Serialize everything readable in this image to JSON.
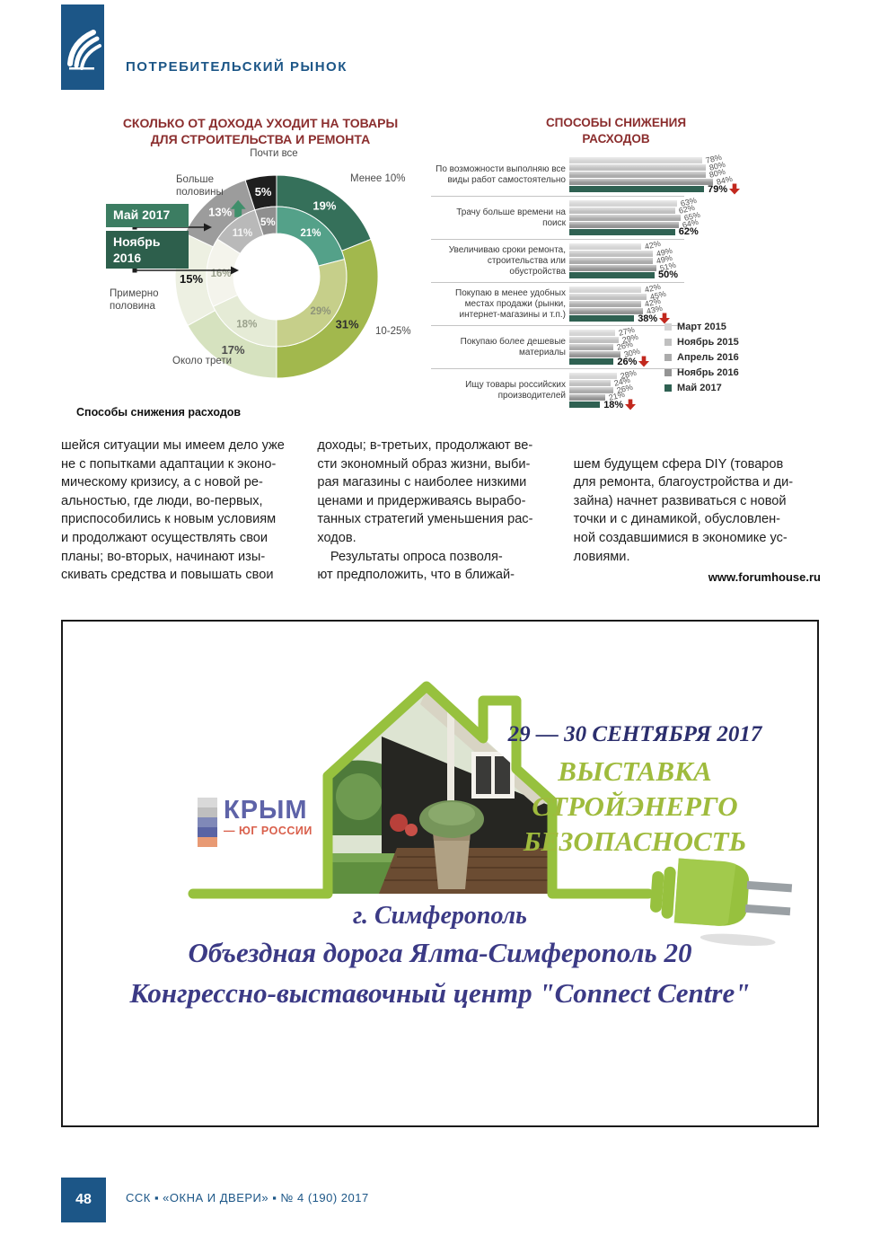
{
  "header": {
    "section_title": "ПОТРЕБИТЕЛЬСКИЙ РЫНОК",
    "brand_color": "#1c5687"
  },
  "chart_data": [
    {
      "type": "donut",
      "title": "СКОЛЬКО ОТ ДОХОДА УХОДИТ НА ТОВАРЫ\nДЛЯ СТРОИТЕЛЬСТВА И РЕМОНТА",
      "title_color": "#8b2e2e",
      "categories": [
        "Менее 10%",
        "10-25%",
        "Около трети",
        "Примерно половина",
        "Больше половины",
        "Почти все"
      ],
      "rings": [
        {
          "name": "Май 2017",
          "position": "outer",
          "values": [
            19,
            31,
            17,
            15,
            13,
            5
          ],
          "badge_color": "#3c7d62"
        },
        {
          "name": "Ноябрь 2016",
          "position": "inner",
          "values": [
            21,
            29,
            18,
            16,
            11,
            5
          ],
          "badge_color": "#2d5f4c"
        }
      ],
      "ring_colors": {
        "outer": [
          "#35705a",
          "#a2b84d",
          "#d6e2bf",
          "#edf0e2",
          "#9c9c9c",
          "#1f1f1f"
        ],
        "inner": [
          "#54a189",
          "#c6cf8a",
          "#e5ebd6",
          "#f4f4ec",
          "#b9b9b9",
          "#8f8f8f"
        ]
      },
      "label_colors": {
        "outer": [
          "#ffffff",
          "#2f2f2f",
          "#4c4c4c",
          "#101010",
          "#ffffff",
          "#ffffff"
        ],
        "inner": [
          "#ffffff",
          "#8f9579",
          "#9aa18c",
          "#9aa08e",
          "#f4f4f4",
          "#ffffff"
        ]
      },
      "up_arrow_category_index": 4,
      "legend_note": "outer ring = Май 2017, inner ring = Ноябрь 2016"
    },
    {
      "type": "bar",
      "title": "СПОСОБЫ СНИЖЕНИЯ\nРАСХОДОВ",
      "title_color": "#8b2e2e",
      "orientation": "horizontal",
      "series_names": [
        "Март 2015",
        "Ноябрь 2015",
        "Апрель 2016",
        "Ноябрь 2016",
        "Май 2017"
      ],
      "series_colors": [
        "#d4d4d4",
        "#c0c0c0",
        "#ababab",
        "#949494",
        "#2f6152"
      ],
      "xlim": [
        0,
        100
      ],
      "groups": [
        {
          "label": "По возможности выполняю все виды работ самостоятельно",
          "values": [
            78,
            80,
            80,
            84,
            79
          ],
          "trend": "down"
        },
        {
          "label": "Трачу больше времени на поиск",
          "values": [
            63,
            62,
            65,
            64,
            62
          ],
          "trend": null
        },
        {
          "label": "Увеличиваю сроки ремонта, строительства или обустройства",
          "values": [
            42,
            49,
            49,
            51,
            50
          ],
          "trend": null
        },
        {
          "label": "Покупаю в менее удобных местах продажи (рынки, интернет-магазины и т.п.)",
          "values": [
            42,
            45,
            42,
            43,
            38
          ],
          "trend": "down"
        },
        {
          "label": "Покупаю более дешевые материалы",
          "values": [
            27,
            29,
            26,
            30,
            26
          ],
          "trend": "down"
        },
        {
          "label": "Ищу товары российских производителей",
          "values": [
            28,
            24,
            26,
            21,
            18
          ],
          "trend": "down"
        }
      ]
    }
  ],
  "figure_caption": "Способы снижения расходов",
  "article": {
    "columns": [
      {
        "text": "шейся ситуации мы имеем дело уже\nне с попытками адаптации к эконо-\nмическому кризису, а с новой ре-\nальностью, где люди, во-первых,\nприспособились к новым условиям\nи продолжают осуществлять свои\nпланы; во-вторых, начинают изы-\nскивать средства и повышать свои"
      },
      {
        "text": "доходы; в-третьих, продолжают ве-\nсти экономный образ жизни, выби-\nрая магазины с наиболее низкими\nценами и придерживаясь вырабо-\nтанных стратегий уменьшения рас-\nходов.\n Результаты опроса позволя-\nют предположить, что в ближай-"
      },
      {
        "text": "шем будущем сфера DIY (товаров\nдля ремонта, благоустройства и ди-\nзайна) начнет развиваться с новой\nточки и с динамикой, обусловлен-\nной создавшимися в экономике ус-\nловиями."
      }
    ],
    "source": "www.forumhouse.ru"
  },
  "ad": {
    "dates": "29 — 30 СЕНТЯБРЯ 2017",
    "title_lines": [
      "ВЫСТАВКА",
      "СТРОЙЭНЕРГО",
      "БЕЗОПАСНОСТЬ"
    ],
    "venue_lines": [
      "г. Симферополь",
      "Объездная дорога Ялта-Симферополь 20",
      "Конгрессно-выставочный центр \"Connect Centre\""
    ],
    "logo": {
      "title": "КРЫМ",
      "subtitle": "— ЮГ РОССИИ"
    },
    "accent_green": "#97c13e",
    "date_color": "#2b2e6d",
    "title_color": "#9fbb3d",
    "venue_color": "#3b3a85"
  },
  "footer": {
    "page_number": "48",
    "journal_line": "ССК ▪ «ОКНА И ДВЕРИ» ▪ № 4 (190) 2017"
  }
}
